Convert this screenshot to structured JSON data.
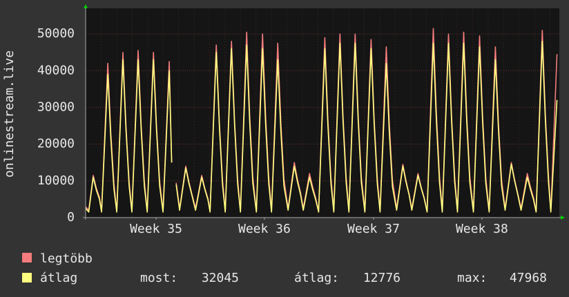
{
  "chart_data": {
    "type": "line",
    "y_label": "onlinestream.live",
    "x": [
      0,
      0.2,
      0.49,
      0.69,
      0.89,
      1.03,
      1.43,
      1.63,
      1.83,
      2.01,
      2.41,
      2.61,
      2.81,
      2.99,
      3.39,
      3.59,
      3.79,
      3.98,
      4.38,
      4.58,
      4.78,
      5.0,
      5.4,
      5.56,
      5.7,
      5.85,
      6.07,
      6.47,
      6.67,
      6.87,
      7.1,
      7.5,
      7.7,
      7.9,
      8.04,
      8.44,
      8.64,
      8.84,
      9.02,
      9.42,
      9.62,
      9.82,
      10.0,
      10.4,
      10.6,
      10.8,
      11.03,
      11.43,
      11.63,
      11.83,
      12.01,
      12.41,
      12.61,
      12.81,
      13.08,
      13.48,
      13.68,
      13.88,
      14.06,
      14.46,
      14.66,
      14.86,
      15.05,
      15.45,
      15.65,
      15.85,
      16.03,
      16.43,
      16.63,
      16.83,
      17.01,
      17.41,
      17.61,
      17.81,
      18.04,
      18.44,
      18.64,
      18.84,
      19.02,
      19.42,
      19.62,
      19.82,
      20.09,
      20.49,
      20.69,
      20.89,
      21.07,
      21.47,
      21.67,
      21.87,
      22.06,
      22.46,
      22.66,
      22.86,
      23.04,
      23.44,
      23.64,
      23.84,
      24.02,
      24.42,
      24.62,
      24.82,
      25.05,
      25.45,
      25.65,
      25.85,
      26.07,
      26.47,
      26.67,
      26.87,
      27.1,
      27.5,
      27.7,
      27.9,
      28.13,
      28.53,
      28.73,
      28.93,
      29.1,
      29.5,
      29.7,
      29.9,
      30.05,
      30.45
    ],
    "series": [
      {
        "name": "legtöbb",
        "color": "#f47c7c",
        "values": [
          3000,
          2000,
          11500,
          8000,
          5500,
          1800,
          42000,
          23000,
          9200,
          1800,
          45000,
          24800,
          9900,
          1800,
          45500,
          25000,
          10000,
          1800,
          45000,
          24800,
          9900,
          1800,
          42500,
          15000,
          null,
          9500,
          2500,
          14000,
          9800,
          6300,
          2500,
          11500,
          8000,
          5200,
          1800,
          47000,
          25900,
          10300,
          1800,
          48000,
          26400,
          10600,
          1800,
          50500,
          27800,
          11100,
          1800,
          50000,
          27500,
          11000,
          1800,
          47500,
          26100,
          10500,
          2500,
          15000,
          10500,
          6800,
          2500,
          12000,
          8400,
          5400,
          1800,
          49000,
          27000,
          10800,
          1800,
          50000,
          27500,
          11000,
          1800,
          50000,
          27500,
          11000,
          1800,
          48500,
          26700,
          10700,
          1800,
          46500,
          25600,
          10200,
          2500,
          14500,
          10200,
          6500,
          2500,
          12000,
          8400,
          5400,
          1800,
          51500,
          28300,
          11300,
          1800,
          50000,
          27500,
          11000,
          1800,
          50500,
          27800,
          11100,
          1800,
          49500,
          27200,
          10900,
          1800,
          46500,
          25600,
          10200,
          2500,
          15000,
          10500,
          6800,
          2500,
          12000,
          8400,
          5400,
          1800,
          51000,
          28100,
          11200,
          1800,
          44500
        ]
      },
      {
        "name": "átlag",
        "color": "#ffff80",
        "values": [
          2500,
          1500,
          11000,
          7500,
          5000,
          1500,
          39000,
          21500,
          7800,
          1500,
          43000,
          23700,
          8600,
          1500,
          43000,
          23700,
          8600,
          1500,
          43000,
          23700,
          8600,
          1500,
          40000,
          15000,
          null,
          9000,
          2000,
          13500,
          9400,
          6000,
          2000,
          11000,
          7700,
          4900,
          1500,
          45000,
          24800,
          9000,
          1500,
          46000,
          25300,
          9200,
          1500,
          47000,
          25900,
          9400,
          1500,
          46000,
          25300,
          9200,
          1500,
          43000,
          23700,
          8600,
          2000,
          14000,
          9800,
          6300,
          2000,
          11000,
          7700,
          4900,
          1500,
          46000,
          25300,
          9200,
          1500,
          47500,
          26100,
          9500,
          1500,
          47500,
          26100,
          9500,
          1500,
          46000,
          25300,
          9200,
          1500,
          42000,
          23100,
          8400,
          2000,
          14000,
          9800,
          6300,
          2000,
          11500,
          8100,
          5200,
          1500,
          47500,
          26100,
          9500,
          1500,
          47500,
          26100,
          9500,
          1500,
          47500,
          26100,
          9500,
          1500,
          46500,
          25600,
          9300,
          1500,
          43000,
          23700,
          8600,
          2000,
          14500,
          10200,
          6500,
          2000,
          11000,
          7700,
          4900,
          1500,
          48000,
          26400,
          9600,
          1500,
          32045
        ]
      }
    ],
    "xlim": [
      0,
      30.6
    ],
    "xticks": [
      {
        "value": 4.55,
        "label": "Week 35"
      },
      {
        "value": 11.55,
        "label": "Week 36"
      },
      {
        "value": 18.6,
        "label": "Week 37"
      },
      {
        "value": 25.6,
        "label": "Week 38"
      }
    ],
    "ylim": [
      0,
      57000
    ],
    "yticks": [
      0,
      10000,
      20000,
      30000,
      40000,
      50000
    ],
    "grid": true,
    "stats": [
      {
        "label": "most:",
        "value": 32045
      },
      {
        "label": "átlag:",
        "value": 12776
      },
      {
        "label": "max:",
        "value": 47968
      }
    ]
  }
}
